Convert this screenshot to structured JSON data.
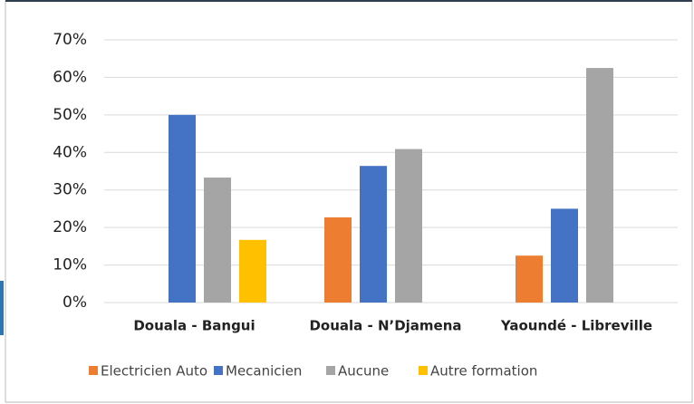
{
  "chart_data": {
    "type": "bar",
    "categories": [
      "Douala - Bangui",
      "Douala - N’Djamena",
      "Yaoundé - Libreville"
    ],
    "series": [
      {
        "name": "Electricien Auto",
        "color": "#ED7D31",
        "values": [
          0,
          22.7,
          12.5
        ]
      },
      {
        "name": "Mecanicien",
        "color": "#4472C4",
        "values": [
          50,
          36.4,
          25
        ]
      },
      {
        "name": "Aucune",
        "color": "#A5A5A5",
        "values": [
          33.3,
          40.9,
          62.5
        ]
      },
      {
        "name": "Autre formation",
        "color": "#FFC000",
        "values": [
          16.7,
          0,
          0
        ]
      }
    ],
    "ylim": [
      0,
      70
    ],
    "yticks": [
      {
        "value": 0,
        "label": "0%"
      },
      {
        "value": 10,
        "label": "10%"
      },
      {
        "value": 20,
        "label": "20%"
      },
      {
        "value": 30,
        "label": "30%"
      },
      {
        "value": 40,
        "label": "40%"
      },
      {
        "value": 50,
        "label": "50%"
      },
      {
        "value": 60,
        "label": "60%"
      },
      {
        "value": 70,
        "label": "70%"
      }
    ],
    "grid": true,
    "legend": "bottom"
  }
}
